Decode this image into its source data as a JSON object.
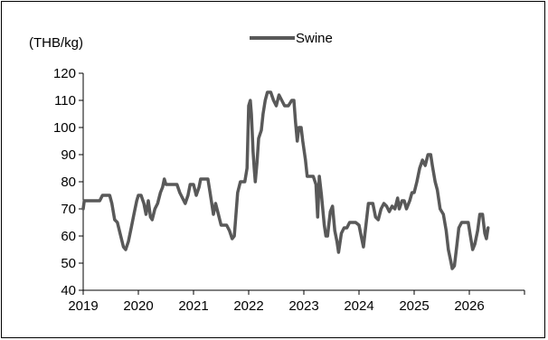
{
  "chart_data": {
    "type": "line",
    "ylabel": "(THB/kg)",
    "xlabel": "",
    "title": "",
    "ylim": [
      40,
      120
    ],
    "yticks": [
      40,
      50,
      60,
      70,
      80,
      90,
      100,
      110,
      120
    ],
    "xlim": [
      2019.0,
      2027.0
    ],
    "xtick_labels": [
      "2019",
      "2020",
      "2021",
      "2022",
      "2023",
      "2024",
      "2025",
      "2026"
    ],
    "xtick_values": [
      2019,
      2020,
      2021,
      2022,
      2023,
      2024,
      2025,
      2026
    ],
    "grid": false,
    "legend_position": "top-center",
    "series": [
      {
        "name": "Swine",
        "color": "#595959",
        "points": [
          [
            2019.0,
            70
          ],
          [
            2019.02,
            73
          ],
          [
            2019.15,
            73
          ],
          [
            2019.3,
            73
          ],
          [
            2019.35,
            75
          ],
          [
            2019.48,
            75
          ],
          [
            2019.52,
            72
          ],
          [
            2019.57,
            66
          ],
          [
            2019.62,
            65
          ],
          [
            2019.68,
            60
          ],
          [
            2019.73,
            56
          ],
          [
            2019.77,
            55
          ],
          [
            2019.82,
            58
          ],
          [
            2019.87,
            63
          ],
          [
            2019.92,
            68
          ],
          [
            2019.97,
            73
          ],
          [
            2020.0,
            75
          ],
          [
            2020.05,
            75
          ],
          [
            2020.1,
            72
          ],
          [
            2020.14,
            68
          ],
          [
            2020.18,
            73
          ],
          [
            2020.22,
            67
          ],
          [
            2020.25,
            66
          ],
          [
            2020.3,
            70
          ],
          [
            2020.35,
            72
          ],
          [
            2020.4,
            76
          ],
          [
            2020.44,
            78
          ],
          [
            2020.47,
            81
          ],
          [
            2020.5,
            79
          ],
          [
            2020.55,
            79
          ],
          [
            2020.62,
            79
          ],
          [
            2020.7,
            79
          ],
          [
            2020.75,
            76
          ],
          [
            2020.8,
            74
          ],
          [
            2020.85,
            72
          ],
          [
            2020.9,
            75
          ],
          [
            2020.94,
            79
          ],
          [
            2021.0,
            79
          ],
          [
            2021.05,
            75
          ],
          [
            2021.1,
            78
          ],
          [
            2021.13,
            81
          ],
          [
            2021.2,
            81
          ],
          [
            2021.26,
            81
          ],
          [
            2021.3,
            76
          ],
          [
            2021.36,
            68
          ],
          [
            2021.4,
            72
          ],
          [
            2021.45,
            68
          ],
          [
            2021.5,
            64
          ],
          [
            2021.6,
            64
          ],
          [
            2021.65,
            62
          ],
          [
            2021.7,
            59
          ],
          [
            2021.74,
            60
          ],
          [
            2021.8,
            76
          ],
          [
            2021.85,
            80
          ],
          [
            2021.93,
            80
          ],
          [
            2021.97,
            85
          ],
          [
            2022.0,
            108
          ],
          [
            2022.03,
            110
          ],
          [
            2022.05,
            105
          ],
          [
            2022.08,
            91
          ],
          [
            2022.1,
            85
          ],
          [
            2022.12,
            80
          ],
          [
            2022.15,
            87
          ],
          [
            2022.18,
            96
          ],
          [
            2022.23,
            99
          ],
          [
            2022.26,
            105
          ],
          [
            2022.3,
            110
          ],
          [
            2022.34,
            113
          ],
          [
            2022.4,
            113
          ],
          [
            2022.45,
            110
          ],
          [
            2022.5,
            108
          ],
          [
            2022.55,
            112
          ],
          [
            2022.6,
            110
          ],
          [
            2022.65,
            108
          ],
          [
            2022.72,
            108
          ],
          [
            2022.78,
            110
          ],
          [
            2022.82,
            110
          ],
          [
            2022.85,
            102
          ],
          [
            2022.88,
            95
          ],
          [
            2022.91,
            100
          ],
          [
            2022.95,
            100
          ],
          [
            2022.98,
            95
          ],
          [
            2023.03,
            88
          ],
          [
            2023.06,
            82
          ],
          [
            2023.1,
            82
          ],
          [
            2023.17,
            82
          ],
          [
            2023.22,
            79
          ],
          [
            2023.25,
            67
          ],
          [
            2023.28,
            82
          ],
          [
            2023.32,
            75
          ],
          [
            2023.37,
            64
          ],
          [
            2023.4,
            60
          ],
          [
            2023.43,
            60
          ],
          [
            2023.48,
            69
          ],
          [
            2023.52,
            71
          ],
          [
            2023.56,
            62
          ],
          [
            2023.6,
            58
          ],
          [
            2023.63,
            54
          ],
          [
            2023.68,
            61
          ],
          [
            2023.73,
            63
          ],
          [
            2023.78,
            63
          ],
          [
            2023.83,
            65
          ],
          [
            2023.88,
            65
          ],
          [
            2023.94,
            65
          ],
          [
            2024.0,
            64
          ],
          [
            2024.04,
            60
          ],
          [
            2024.08,
            56
          ],
          [
            2024.12,
            63
          ],
          [
            2024.17,
            72
          ],
          [
            2024.22,
            72
          ],
          [
            2024.25,
            72
          ],
          [
            2024.3,
            67
          ],
          [
            2024.35,
            66
          ],
          [
            2024.4,
            70
          ],
          [
            2024.45,
            72
          ],
          [
            2024.5,
            71
          ],
          [
            2024.55,
            69
          ],
          [
            2024.6,
            71
          ],
          [
            2024.65,
            70
          ],
          [
            2024.7,
            74
          ],
          [
            2024.73,
            70
          ],
          [
            2024.78,
            73
          ],
          [
            2024.82,
            73
          ],
          [
            2024.86,
            70
          ],
          [
            2024.92,
            73
          ],
          [
            2024.96,
            76
          ],
          [
            2025.0,
            76
          ],
          [
            2025.05,
            80
          ],
          [
            2025.1,
            85
          ],
          [
            2025.15,
            88
          ],
          [
            2025.2,
            86
          ],
          [
            2025.25,
            90
          ],
          [
            2025.3,
            90
          ],
          [
            2025.33,
            86
          ],
          [
            2025.38,
            80
          ],
          [
            2025.42,
            77
          ],
          [
            2025.47,
            70
          ],
          [
            2025.53,
            68
          ],
          [
            2025.58,
            62
          ],
          [
            2025.62,
            55
          ],
          [
            2025.66,
            51
          ],
          [
            2025.69,
            48
          ],
          [
            2025.73,
            49
          ],
          [
            2025.77,
            56
          ],
          [
            2025.81,
            63
          ],
          [
            2025.86,
            65
          ],
          [
            2025.92,
            65
          ],
          [
            2025.98,
            65
          ],
          [
            2026.02,
            60
          ],
          [
            2026.06,
            55
          ],
          [
            2026.1,
            57
          ],
          [
            2026.15,
            62
          ],
          [
            2026.19,
            68
          ],
          [
            2026.24,
            68
          ],
          [
            2026.28,
            61
          ],
          [
            2026.31,
            59
          ],
          [
            2026.34,
            63
          ]
        ]
      }
    ]
  }
}
